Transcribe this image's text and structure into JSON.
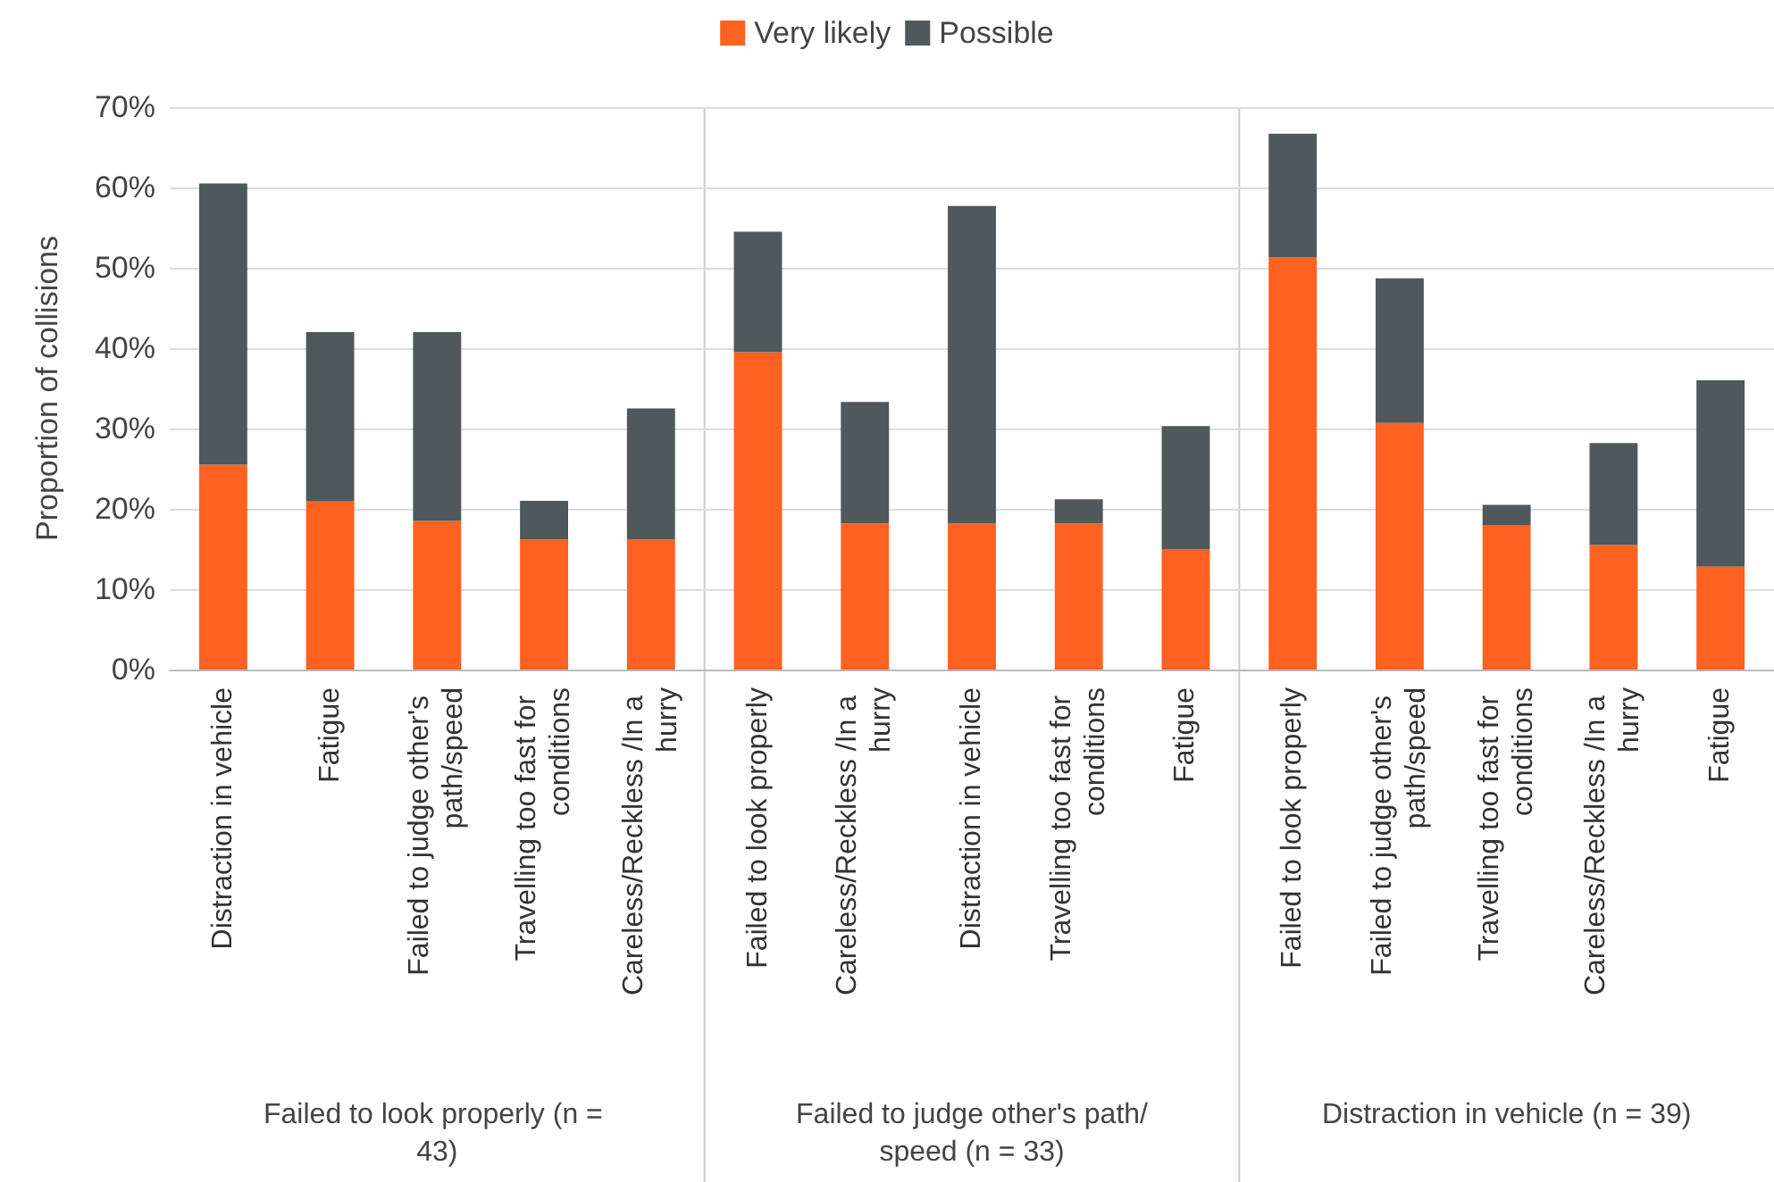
{
  "chart_data": {
    "type": "bar",
    "stacked": true,
    "ylabel": "Proportion of collisions",
    "legend": "top",
    "grid": "y",
    "ylim": [
      0,
      70
    ],
    "yticks": [
      {
        "value": 0,
        "label": "0%"
      },
      {
        "value": 10,
        "label": "10%"
      },
      {
        "value": 20,
        "label": "20%"
      },
      {
        "value": 30,
        "label": "30%"
      },
      {
        "value": 40,
        "label": "40%"
      },
      {
        "value": 50,
        "label": "50%"
      },
      {
        "value": 60,
        "label": "60%"
      },
      {
        "value": 70,
        "label": "70%"
      }
    ],
    "categories": [
      "Distraction in vehicle",
      "Fatigue",
      "Failed to judge other's path/speed",
      "Travelling too fast for conditions",
      "Careless/Reckless /In a hurry",
      "Failed to look properly",
      "Careless/Reckless /In a hurry",
      "Distraction in vehicle",
      "Travelling too fast for conditions",
      "Fatigue",
      "Failed to look properly",
      "Failed to judge other's path/speed",
      "Travelling too fast for conditions",
      "Careless/Reckless /In a hurry",
      "Fatigue"
    ],
    "annotations": [
      "Failed to look properly (n = 43)",
      "Failed to judge other's path/speed (n = 33)",
      "Distraction in vehicle (n = 39)"
    ],
    "series": [
      {
        "name": "Very likely",
        "color": "#ff6120",
        "values": [
          25.5,
          21,
          18.5,
          16.2,
          16.2,
          39.5,
          18.2,
          18.2,
          18.2,
          15,
          51.3,
          30.7,
          18,
          15.5,
          12.8
        ]
      },
      {
        "name": "Possible",
        "color": "#4f585b",
        "values": [
          35,
          21,
          23.5,
          4.8,
          16.3,
          15,
          15.1,
          39.5,
          3,
          15.3,
          15.4,
          18,
          2.5,
          12.7,
          23.2
        ]
      }
    ]
  }
}
